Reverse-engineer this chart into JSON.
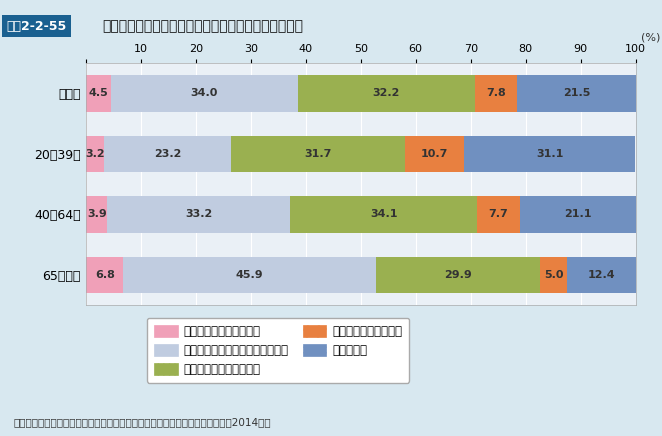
{
  "title_box": "図表2-2-55",
  "title_main": "自治体の健康づくりの取組みに対する評価（年代別）",
  "categories": [
    "全年齢",
    "20～39歳",
    "40～64歳",
    "65歳以上"
  ],
  "series": [
    {
      "label": "積極的に取り組んでいる",
      "values": [
        4.5,
        3.2,
        3.9,
        6.8
      ],
      "color": "#f0a0b8",
      "hatch": "",
      "edgecolor": "#f0a0b8"
    },
    {
      "label": "どちらかというと取り組んでいる",
      "values": [
        34.0,
        23.2,
        33.2,
        45.9
      ],
      "color": "#c0cce0",
      "hatch": "",
      "edgecolor": "#c0cce0"
    },
    {
      "label": "あまり取り組んでいない",
      "values": [
        32.2,
        31.7,
        34.1,
        29.9
      ],
      "color": "#9ab050",
      "hatch": "|||",
      "edgecolor": "#9ab050"
    },
    {
      "label": "全く取り組んでいない",
      "values": [
        7.8,
        10.7,
        7.7,
        5.0
      ],
      "color": "#e88040",
      "hatch": "///",
      "edgecolor": "#e88040"
    },
    {
      "label": "わからない",
      "values": [
        21.5,
        31.1,
        21.1,
        12.4
      ],
      "color": "#7090c0",
      "hatch": "---",
      "edgecolor": "#7090c0"
    }
  ],
  "xlim": [
    0,
    100
  ],
  "xticks": [
    0,
    10,
    20,
    30,
    40,
    50,
    60,
    70,
    80,
    90,
    100
  ],
  "source": "資料：厚生労働省政策統括官付政策評価官室委託「健康意識に関する調査」（2014年）",
  "bg_color": "#d8e8f0",
  "plot_bg_color": "#eaf0f6",
  "bar_height": 0.6,
  "font_size_label": 9,
  "font_size_value": 8,
  "font_size_title": 10,
  "value_color_dark": "#333333",
  "value_color_light": "#ffffff"
}
